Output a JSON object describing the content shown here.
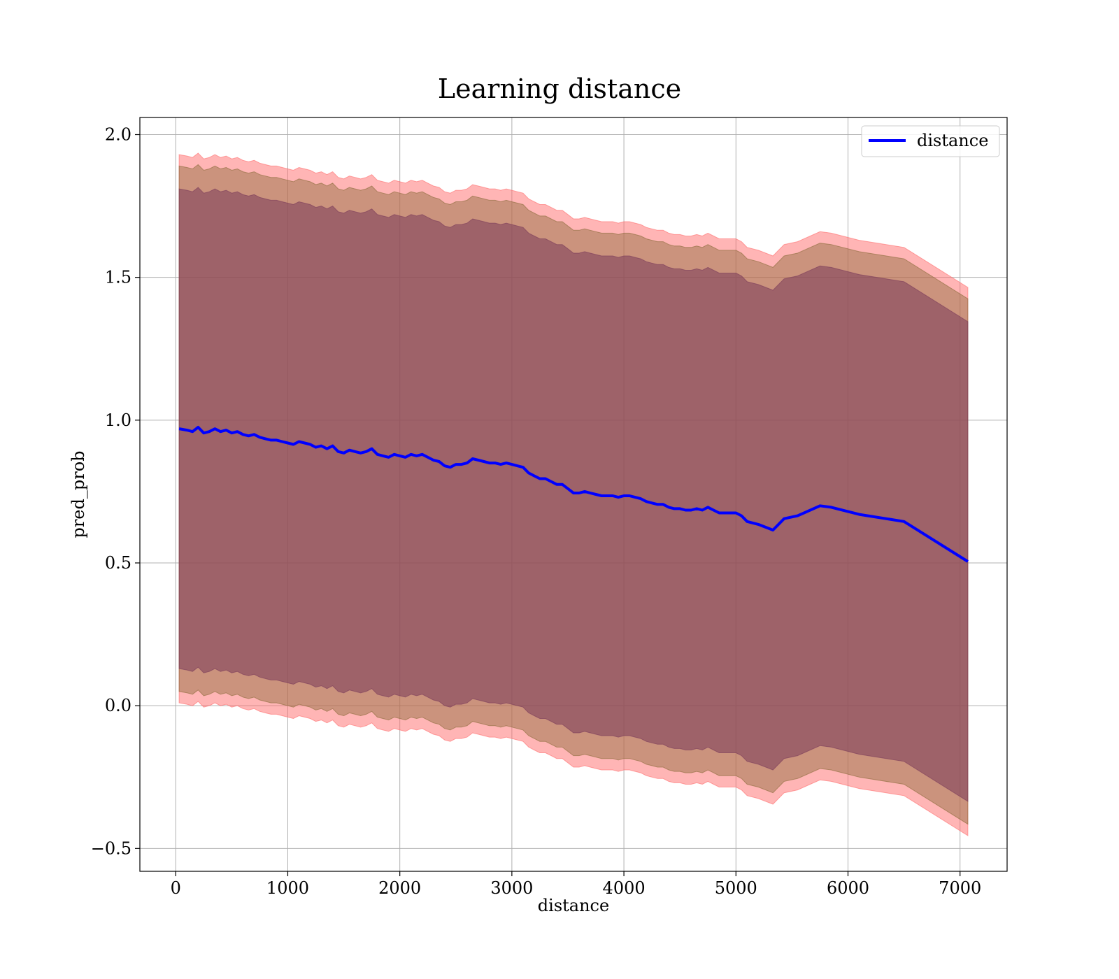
{
  "chart_data": {
    "type": "line",
    "title": "Learning distance",
    "xlabel": "distance",
    "ylabel": "pred_prob",
    "xlim": [
      -320,
      7420
    ],
    "ylim": [
      -0.58,
      2.06
    ],
    "xticks": [
      0,
      1000,
      2000,
      3000,
      4000,
      5000,
      6000,
      7000
    ],
    "xtick_labels": [
      "0",
      "1000",
      "2000",
      "3000",
      "4000",
      "5000",
      "6000",
      "7000"
    ],
    "yticks": [
      -0.5,
      0.0,
      0.5,
      1.0,
      1.5,
      2.0
    ],
    "ytick_labels": [
      "−0.5",
      "0.0",
      "0.5",
      "1.0",
      "1.5",
      "2.0"
    ],
    "grid": true,
    "legend": {
      "position": "top-right",
      "entries": [
        "distance"
      ]
    },
    "colors": {
      "line": "#0000ff",
      "band_outer": "#ff6b6b",
      "band_middle": "#8b6a3a",
      "band_inner": "#7a3a5a"
    },
    "series": [
      {
        "name": "distance",
        "x": [
          30,
          100,
          150,
          200,
          250,
          300,
          350,
          400,
          450,
          500,
          550,
          600,
          650,
          700,
          750,
          800,
          850,
          900,
          950,
          1000,
          1050,
          1100,
          1150,
          1200,
          1250,
          1300,
          1350,
          1400,
          1450,
          1500,
          1550,
          1600,
          1650,
          1700,
          1750,
          1800,
          1850,
          1900,
          1950,
          2000,
          2050,
          2100,
          2150,
          2200,
          2250,
          2300,
          2350,
          2400,
          2450,
          2500,
          2550,
          2600,
          2650,
          2700,
          2750,
          2800,
          2850,
          2900,
          2950,
          3000,
          3050,
          3100,
          3150,
          3200,
          3250,
          3300,
          3350,
          3400,
          3450,
          3500,
          3550,
          3600,
          3650,
          3700,
          3750,
          3800,
          3850,
          3900,
          3950,
          4000,
          4050,
          4100,
          4150,
          4200,
          4250,
          4300,
          4350,
          4400,
          4450,
          4500,
          4550,
          4600,
          4650,
          4700,
          4750,
          4800,
          4850,
          4950,
          5000,
          5050,
          5100,
          5200,
          5330,
          5430,
          5550,
          5750,
          5850,
          6100,
          6500,
          7070
        ],
        "y": [
          0.97,
          0.965,
          0.96,
          0.975,
          0.955,
          0.96,
          0.97,
          0.96,
          0.965,
          0.955,
          0.96,
          0.95,
          0.945,
          0.95,
          0.94,
          0.935,
          0.93,
          0.93,
          0.925,
          0.92,
          0.915,
          0.925,
          0.92,
          0.915,
          0.905,
          0.91,
          0.9,
          0.91,
          0.89,
          0.885,
          0.895,
          0.89,
          0.885,
          0.89,
          0.9,
          0.88,
          0.875,
          0.87,
          0.88,
          0.875,
          0.87,
          0.88,
          0.875,
          0.88,
          0.87,
          0.86,
          0.855,
          0.84,
          0.835,
          0.845,
          0.845,
          0.85,
          0.865,
          0.86,
          0.855,
          0.85,
          0.85,
          0.845,
          0.85,
          0.845,
          0.84,
          0.835,
          0.815,
          0.805,
          0.795,
          0.795,
          0.785,
          0.775,
          0.775,
          0.76,
          0.745,
          0.745,
          0.75,
          0.745,
          0.74,
          0.735,
          0.735,
          0.735,
          0.73,
          0.735,
          0.735,
          0.73,
          0.725,
          0.715,
          0.71,
          0.705,
          0.705,
          0.695,
          0.69,
          0.69,
          0.685,
          0.685,
          0.69,
          0.685,
          0.695,
          0.685,
          0.675,
          0.675,
          0.675,
          0.665,
          0.645,
          0.635,
          0.615,
          0.655,
          0.665,
          0.7,
          0.695,
          0.67,
          0.645,
          0.505
        ]
      }
    ],
    "bands": [
      {
        "offset_upper": 0.96,
        "offset_lower": 0.96
      },
      {
        "offset_upper": 0.92,
        "offset_lower": 0.92
      },
      {
        "offset_upper": 0.84,
        "offset_lower": 0.84
      }
    ]
  }
}
